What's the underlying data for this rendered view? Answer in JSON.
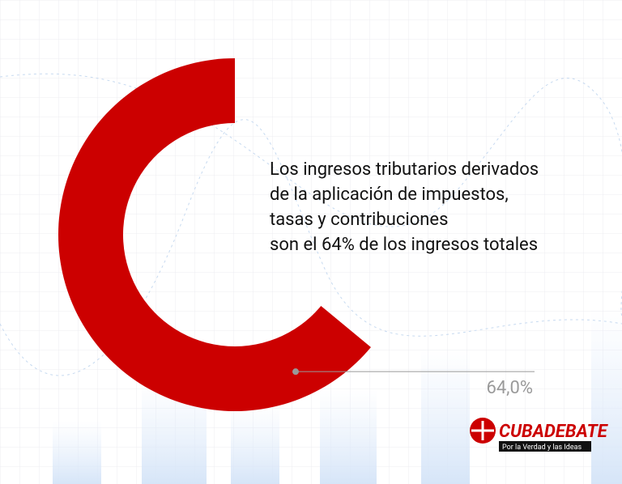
{
  "chart_data": {
    "type": "donut",
    "values": [
      64
    ],
    "value_labels": [
      "64,0%"
    ],
    "color": "#cc0000",
    "annotation": [
      "Los ingresos tributarios derivados",
      "de la aplicación de impuestos,",
      "tasas y contribuciones",
      "son el 64% de los ingresos totales"
    ]
  },
  "branding": {
    "name": "CUBADEBATE",
    "tagline": "Por la Verdad y las Ideas"
  }
}
